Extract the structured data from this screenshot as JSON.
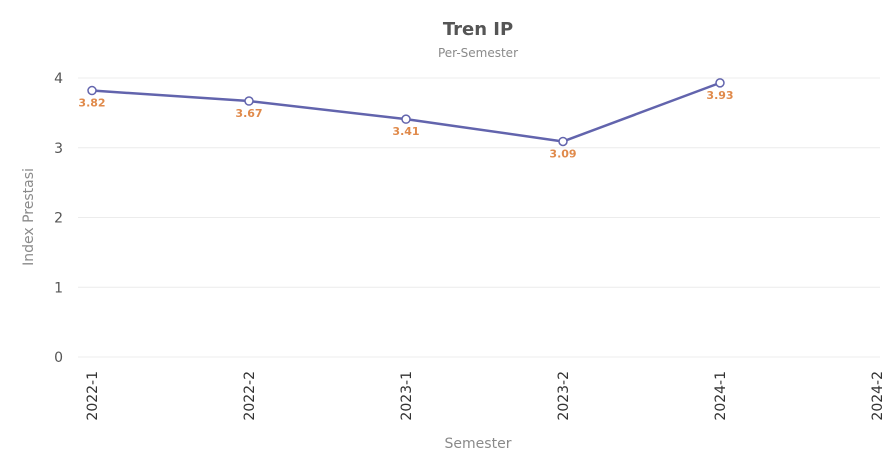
{
  "chart_data": {
    "type": "line",
    "title": "Tren IP",
    "subtitle": "Per-Semester",
    "xlabel": "Semester",
    "ylabel": "Index Prestasi",
    "categories": [
      "2022-1",
      "2022-2",
      "2023-1",
      "2023-2",
      "2024-1",
      "2024-2"
    ],
    "series": [
      {
        "values": [
          3.82,
          3.67,
          3.41,
          3.09,
          3.93,
          null
        ],
        "data_labels": [
          "3.82",
          "3.67",
          "3.41",
          "3.09",
          "3.93",
          null
        ]
      }
    ],
    "yticks": [
      "0",
      "1",
      "2",
      "3",
      "4"
    ],
    "ylim": [
      0,
      4.3
    ],
    "grid": true,
    "legend": "none",
    "colors": {
      "line": "#6264ad",
      "label": "#e08a4b",
      "grid": "#ececec"
    }
  }
}
